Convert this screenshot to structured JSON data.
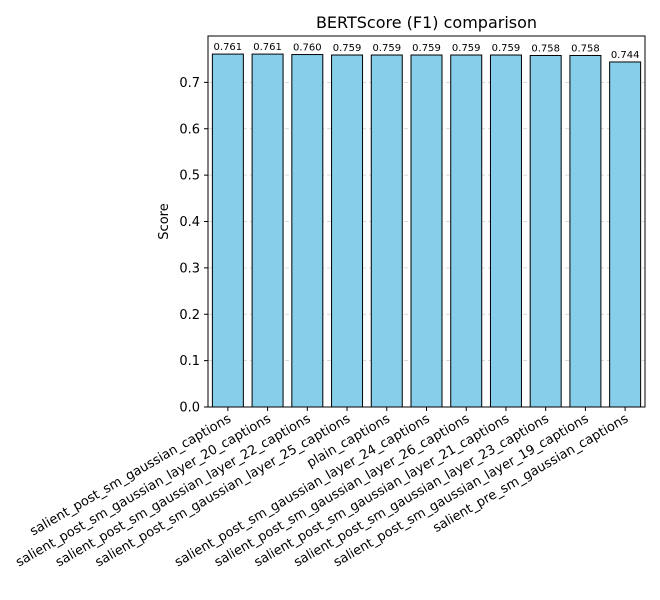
{
  "chart_data": {
    "type": "bar",
    "title": "BERTScore (F1) comparison",
    "xlabel": "",
    "ylabel": "Score",
    "ylim": [
      0,
      0.8
    ],
    "yticks": [
      0.0,
      0.1,
      0.2,
      0.3,
      0.4,
      0.5,
      0.6,
      0.7
    ],
    "ytick_labels": [
      "0.0",
      "0.1",
      "0.2",
      "0.3",
      "0.4",
      "0.5",
      "0.6",
      "0.7"
    ],
    "grid": "y-dashed",
    "bar_color": "#87ceeb",
    "bar_edge_color": "#000000",
    "grid_color": "#cccccc",
    "categories": [
      "salient_post_sm_gaussian_captions",
      "salient_post_sm_gaussian_layer_20_captions",
      "salient_post_sm_gaussian_layer_22_captions",
      "salient_post_sm_gaussian_layer_25_captions",
      "plain_captions",
      "salient_post_sm_gaussian_layer_24_captions",
      "salient_post_sm_gaussian_layer_26_captions",
      "salient_post_sm_gaussian_layer_21_captions",
      "salient_post_sm_gaussian_layer_23_captions",
      "salient_post_sm_gaussian_layer_19_captions",
      "salient_pre_sm_gaussian_captions"
    ],
    "values": [
      0.761,
      0.761,
      0.76,
      0.759,
      0.759,
      0.759,
      0.759,
      0.759,
      0.758,
      0.758,
      0.744
    ],
    "value_labels": [
      "0.761",
      "0.761",
      "0.760",
      "0.759",
      "0.759",
      "0.759",
      "0.759",
      "0.759",
      "0.758",
      "0.758",
      "0.744"
    ]
  }
}
